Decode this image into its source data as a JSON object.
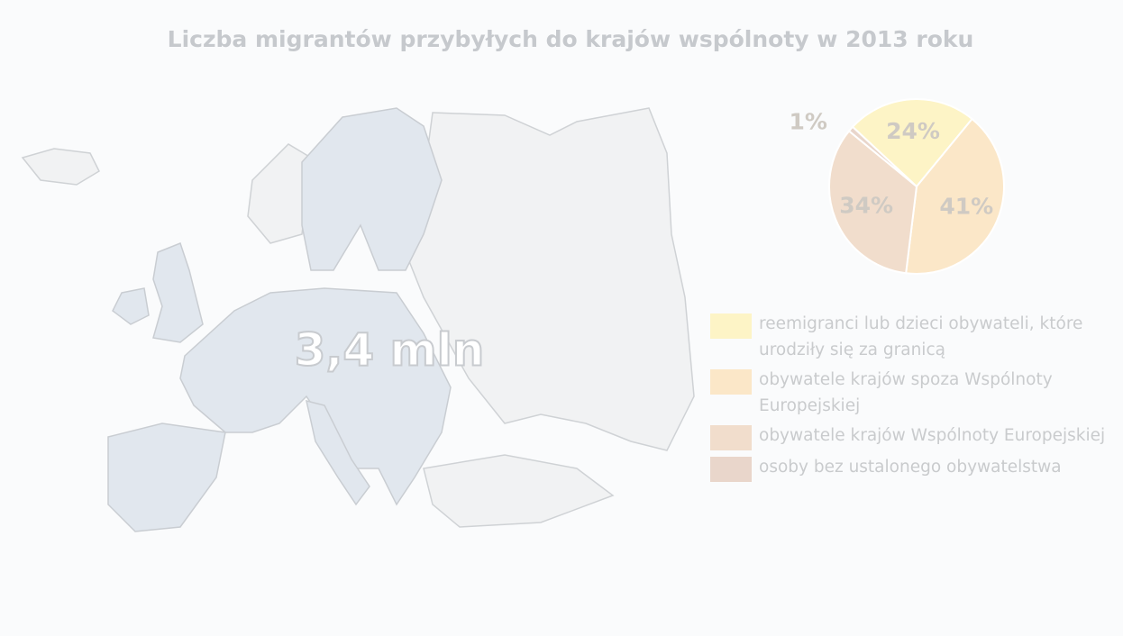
{
  "chart_data": {
    "type": "pie",
    "title": "Liczba migrantów przybyłych do krajów wspólnoty w 2013 roku",
    "categories": [
      "reemigranci lub dzieci obywateli, które urodziły się za granicą",
      "obywatele krajów spoza Wspólnoty Europejskiej",
      "obywatele krajów Wspólnoty Europejskiej",
      "osoby bez ustalonego obywatelstwa"
    ],
    "values": [
      24,
      41,
      34,
      1
    ],
    "value_labels": [
      "24%",
      "41%",
      "34%",
      "1%"
    ],
    "colors": [
      "#fdf4c6",
      "#fbe7c8",
      "#f1ddcc",
      "#e9d6cb"
    ]
  },
  "map": {
    "label": "3,4 mln"
  }
}
